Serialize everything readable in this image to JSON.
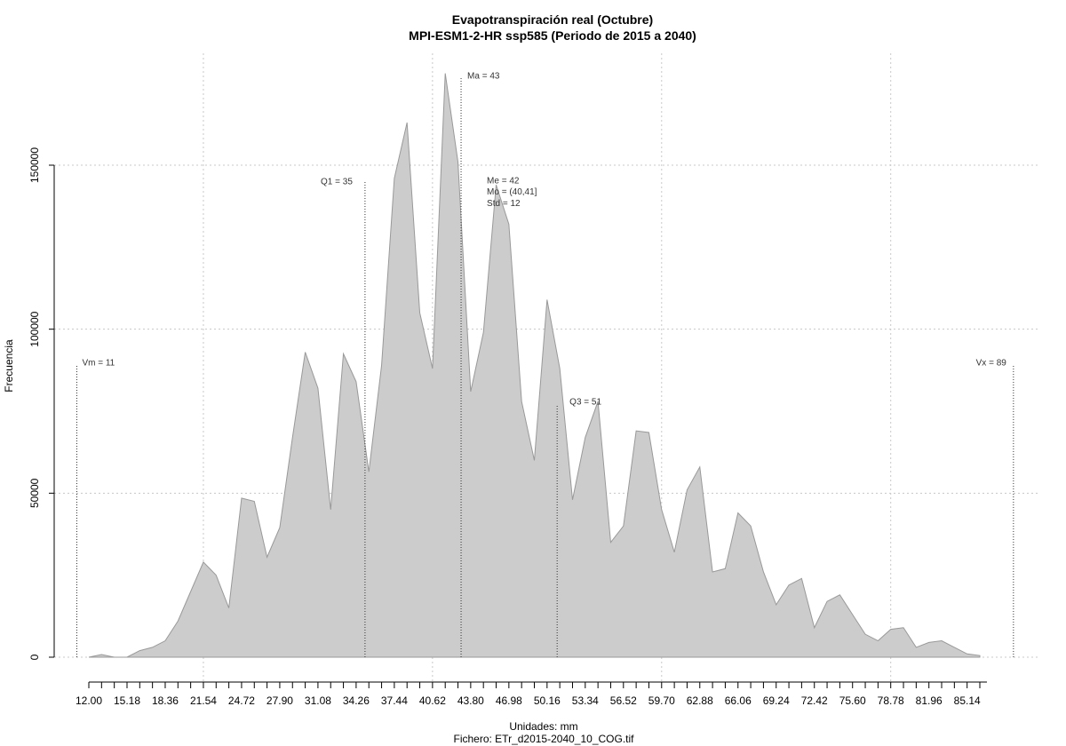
{
  "chart_data": {
    "type": "area",
    "title": "Evapotranspiración real (Octubre)",
    "subtitle": "MPI-ESM1-2-HR ssp585 (Periodo de 2015 a 2040)",
    "xlabel": "Unidades: mm",
    "footer": "Fichero: ETr_d2015-2040_10_COG.tif",
    "ylabel": "Frecuencia",
    "xlim": [
      9,
      94
    ],
    "ylim": [
      0,
      180000
    ],
    "x_ticks": [
      12.0,
      13.06,
      14.12,
      15.18,
      16.24,
      17.3,
      18.36,
      19.42,
      20.48,
      21.54,
      22.6,
      23.66,
      24.72,
      25.78,
      26.84,
      27.9,
      28.96,
      30.02,
      31.08,
      32.14,
      33.2,
      34.26,
      35.32,
      36.38,
      37.44,
      38.5,
      39.56,
      40.62,
      41.68,
      42.74,
      43.8,
      44.86,
      45.92,
      46.98,
      48.04,
      49.1,
      50.16,
      51.22,
      52.28,
      53.34,
      54.4,
      55.46,
      56.52,
      57.58,
      58.64,
      59.7,
      60.76,
      61.82,
      62.88,
      63.94,
      65.0,
      66.06,
      67.12,
      68.18,
      69.24,
      70.3,
      71.36,
      72.42,
      73.48,
      74.54,
      75.6,
      76.66,
      77.72,
      78.78,
      79.84,
      80.9,
      81.96,
      83.02,
      84.08,
      85.14,
      86.2
    ],
    "x_tick_labels": [
      "12.00",
      "15.18",
      "18.36",
      "21.54",
      "24.72",
      "27.90",
      "31.08",
      "34.26",
      "37.44",
      "40.62",
      "43.80",
      "46.98",
      "50.16",
      "53.34",
      "56.52",
      "59.70",
      "62.88",
      "66.06",
      "69.24",
      "72.42",
      "75.60",
      "78.78",
      "81.96",
      "85.14"
    ],
    "y_ticks": [
      0,
      50000,
      100000,
      150000
    ],
    "y_tick_labels": [
      "0",
      "50000",
      "100000",
      "150000"
    ],
    "x_gridlines": [
      21.54,
      40.62,
      59.7,
      78.78
    ],
    "y_gridlines": [
      0,
      50000,
      100000,
      150000
    ],
    "grid": true,
    "fill_color": "#cccccc",
    "line_color": "#999999",
    "x": [
      12.0,
      13.06,
      14.12,
      15.18,
      16.24,
      17.3,
      18.36,
      19.42,
      20.48,
      21.54,
      22.6,
      23.66,
      24.72,
      25.78,
      26.84,
      27.9,
      28.96,
      30.02,
      31.08,
      32.14,
      33.2,
      34.26,
      35.32,
      36.38,
      37.44,
      38.5,
      39.56,
      40.62,
      41.68,
      42.74,
      43.8,
      44.86,
      45.92,
      46.98,
      48.04,
      49.1,
      50.16,
      51.22,
      52.28,
      53.34,
      54.4,
      55.46,
      56.52,
      57.58,
      58.64,
      59.7,
      60.76,
      61.82,
      62.88,
      63.94,
      65.0,
      66.06,
      67.12,
      68.18,
      69.24,
      70.3,
      71.36,
      72.42,
      73.48,
      74.54,
      75.6,
      76.66,
      77.72,
      78.78,
      79.84,
      80.9,
      81.96,
      83.02,
      84.08,
      85.14,
      86.2
    ],
    "values": [
      0,
      800,
      0,
      0,
      2000,
      3000,
      5000,
      11000,
      20000,
      29000,
      25000,
      15000,
      48500,
      47500,
      30500,
      39500,
      67000,
      93000,
      82000,
      45000,
      92500,
      84000,
      56500,
      89000,
      146000,
      163000,
      105000,
      88000,
      178000,
      151000,
      81000,
      99000,
      144000,
      132000,
      78000,
      60000,
      109000,
      88000,
      48000,
      67000,
      78000,
      35000,
      40000,
      69000,
      68500,
      45000,
      32000,
      51000,
      58000,
      26000,
      27000,
      44000,
      40000,
      26000,
      16000,
      22000,
      24000,
      9000,
      17000,
      19000,
      13000,
      7000,
      5000,
      8500,
      9000,
      3000,
      4500,
      5000,
      3000,
      1000,
      500
    ],
    "annotations": [
      {
        "label": "Vm = 11",
        "x": 11,
        "y": 89000
      },
      {
        "label": "Q1 = 35",
        "x": 35,
        "y": 145000
      },
      {
        "label": "Ma = 43",
        "x": 43,
        "y": 177000
      },
      {
        "label": "Me = 42",
        "x": 43,
        "y": 145000
      },
      {
        "label": "Mo = (40,41]",
        "x": 43,
        "y": 141000
      },
      {
        "label": "Std = 12",
        "x": 43,
        "y": 137000
      },
      {
        "label": "Q3 = 51",
        "x": 51,
        "y": 77000
      },
      {
        "label": "Vx = 89",
        "x": 89,
        "y": 89000
      }
    ]
  }
}
